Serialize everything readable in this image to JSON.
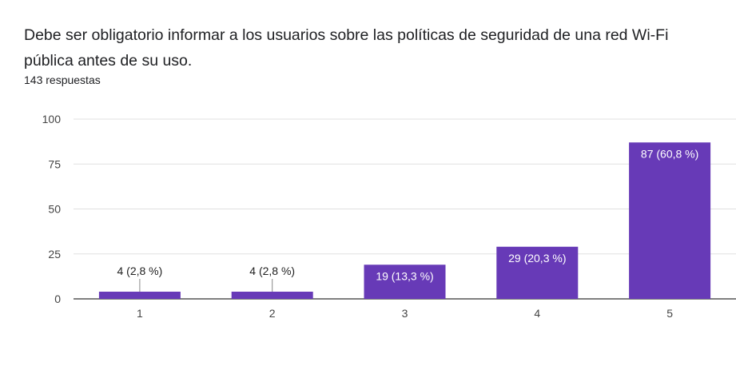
{
  "question": "Debe ser obligatorio informar a los usuarios sobre las políticas de seguridad de una red Wi-Fi pública antes de su uso.",
  "responses": "143 respuestas",
  "colors": {
    "bar": "#673ab7",
    "grid": "#e0e0e0",
    "axis": "#333333",
    "label_inside": "#ffffff",
    "label_outside": "#222222"
  },
  "chart_data": {
    "type": "bar",
    "title": "Debe ser obligatorio informar a los usuarios sobre las políticas de seguridad de una red Wi-Fi pública antes de su uso.",
    "subtitle": "143 respuestas",
    "categories": [
      "1",
      "2",
      "3",
      "4",
      "5"
    ],
    "values": [
      4,
      4,
      19,
      29,
      87
    ],
    "data_labels": [
      "4 (2,8 %)",
      "4 (2,8 %)",
      "19 (13,3 %)",
      "29 (20,3 %)",
      "87 (60,8 %)"
    ],
    "ylim": [
      0,
      100
    ],
    "yticks": [
      0,
      25,
      50,
      75,
      100
    ],
    "xlabel": "",
    "ylabel": "",
    "grid": true,
    "legend": "none"
  }
}
